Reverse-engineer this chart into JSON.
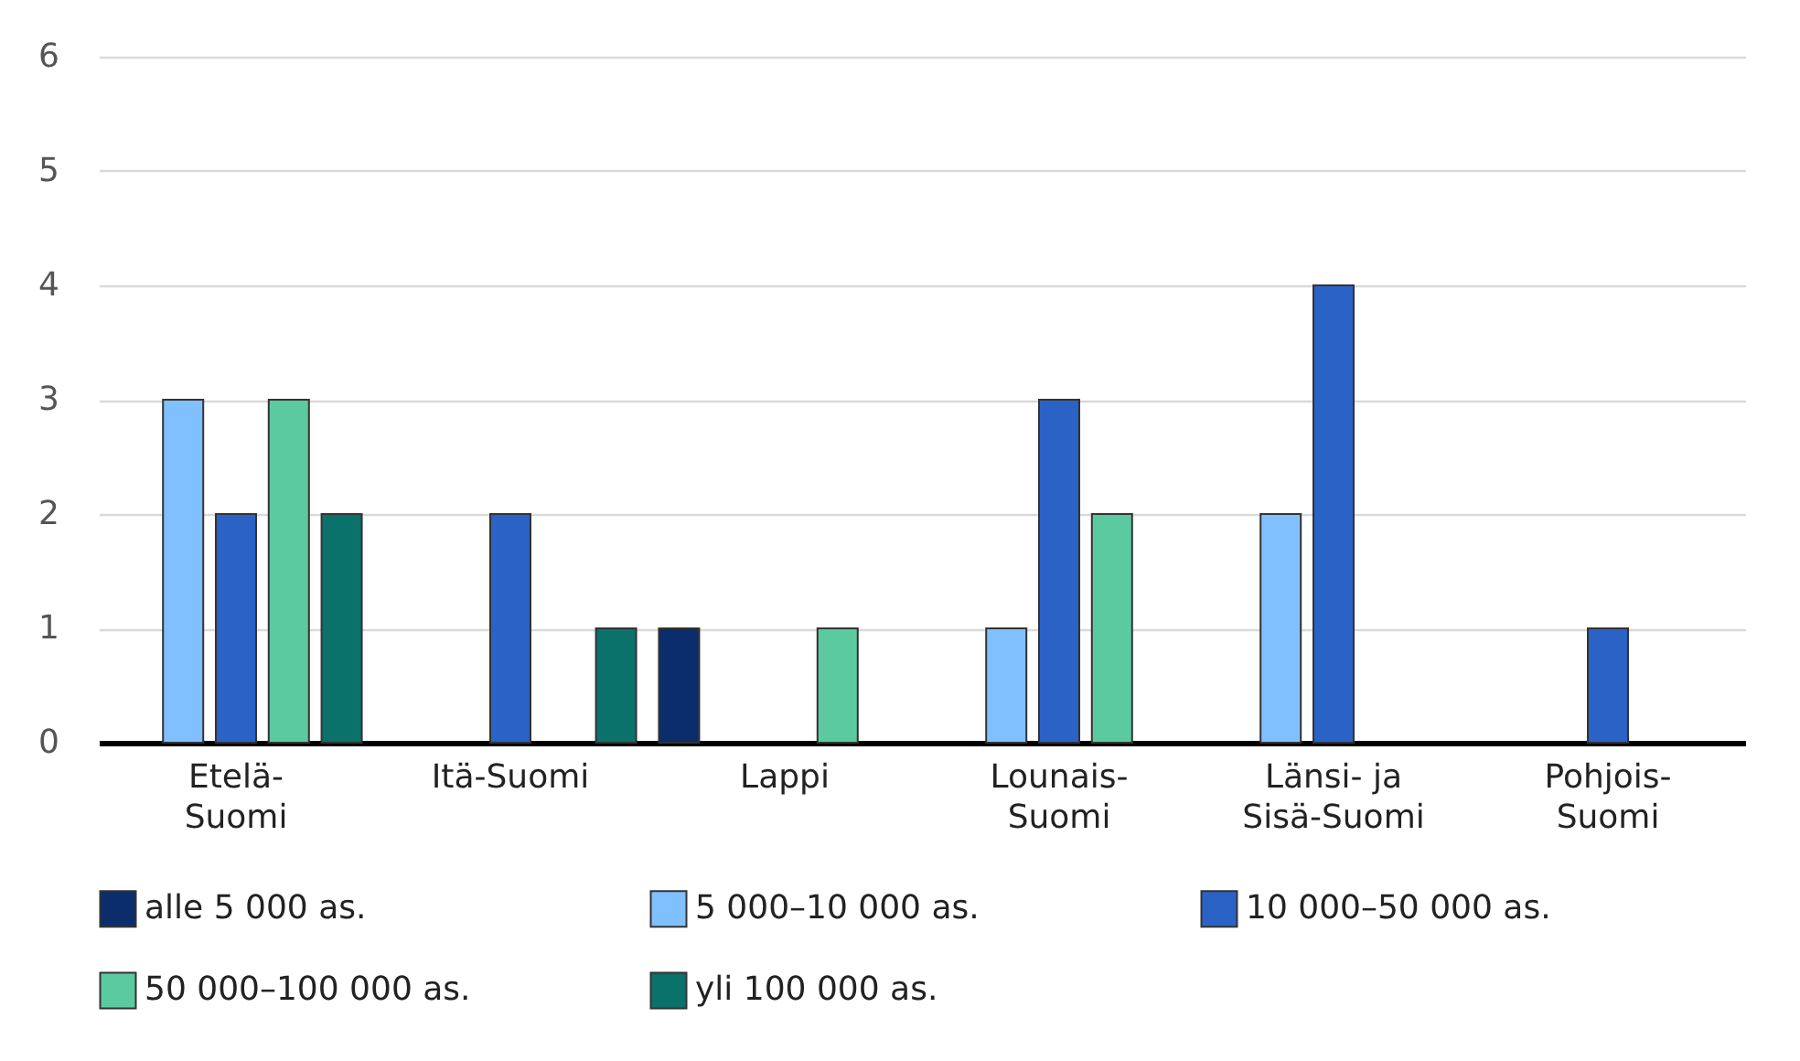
{
  "chart_data": {
    "type": "bar",
    "categories": [
      "Etelä-Suomi",
      "Itä-Suomi",
      "Lappi",
      "Lounais-Suomi",
      "Länsi- ja Sisä-Suomi",
      "Pohjois-Suomi"
    ],
    "series": [
      {
        "name": "alle 5 000 as.",
        "color": "#0b2d6b",
        "values": [
          0,
          0,
          1,
          0,
          0,
          0
        ]
      },
      {
        "name": "5 000–10 000 as.",
        "color": "#80c0ff",
        "values": [
          3,
          0,
          0,
          1,
          2,
          0
        ]
      },
      {
        "name": "10 000–50 000 as.",
        "color": "#2a62c6",
        "values": [
          2,
          2,
          0,
          3,
          4,
          1
        ]
      },
      {
        "name": "50 000–100 000 as.",
        "color": "#5ccaa0",
        "values": [
          3,
          0,
          1,
          2,
          0,
          0
        ]
      },
      {
        "name": "yli 100 000 as.",
        "color": "#0b716b",
        "values": [
          2,
          1,
          0,
          0,
          0,
          0
        ]
      }
    ],
    "ylim": [
      0,
      6
    ],
    "yticks": [
      0,
      1,
      2,
      3,
      4,
      5,
      6
    ],
    "grid": "y",
    "legend": "bottom"
  }
}
